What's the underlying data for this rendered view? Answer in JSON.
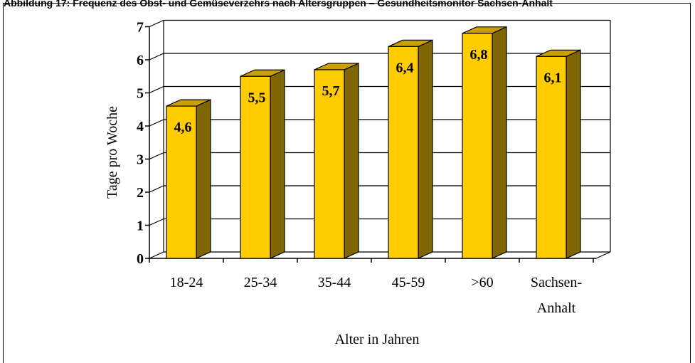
{
  "header": {
    "caption": "Abbildung 17: Frequenz des Obst- und Gemüseverzehrs nach Altersgruppen – Gesundheitsmonitor Sachsen-Anhalt"
  },
  "chart_data": {
    "type": "bar",
    "title": "",
    "xlabel": "Alter in Jahren",
    "ylabel": "Tage pro Woche",
    "categories": [
      [
        "18-24"
      ],
      [
        "25-34"
      ],
      [
        "35-44"
      ],
      [
        "45-59"
      ],
      [
        ">60"
      ],
      [
        "Sachsen-",
        "Anhalt"
      ]
    ],
    "values": [
      4.6,
      5.5,
      5.7,
      6.4,
      6.8,
      6.1
    ],
    "value_labels": [
      "4,6",
      "5,5",
      "5,7",
      "6,4",
      "6,8",
      "6,1"
    ],
    "ylim": [
      0,
      7
    ],
    "yticks": [
      "0",
      "1",
      "2",
      "3",
      "4",
      "5",
      "6",
      "7"
    ],
    "grid": true,
    "legend": "none",
    "colors": {
      "bar_front": "#ffcc00",
      "bar_top": "#c9a000",
      "bar_side": "#806600",
      "grid": "#000000"
    }
  }
}
